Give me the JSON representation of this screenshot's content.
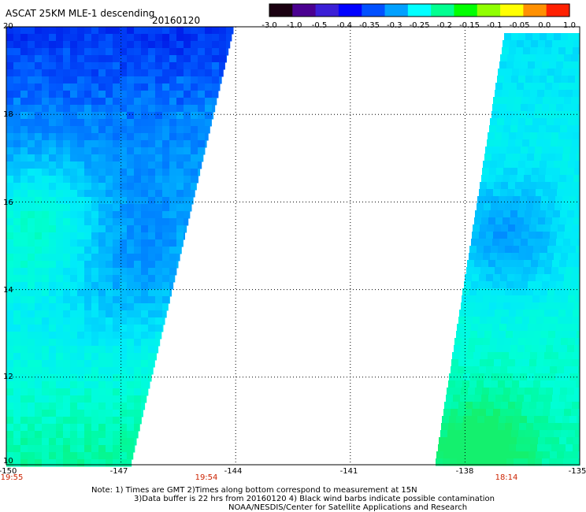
{
  "header": {
    "title": "ASCAT 25KM MLE-1 descending",
    "date": "20160120"
  },
  "colorbar": {
    "labels": [
      "-3.0",
      "-1.0",
      "-0.5",
      "-0.4",
      "-0.35",
      "-0.3",
      "-0.25",
      "-0.2",
      "-0.15",
      "-0.1",
      "-0.05",
      "0.0",
      "1.0"
    ],
    "colors": [
      "#1a0010",
      "#4a0090",
      "#3b1fd6",
      "#0000ff",
      "#0050ff",
      "#00a0ff",
      "#00ffff",
      "#00ff90",
      "#00ff00",
      "#90ff00",
      "#ffff00",
      "#ff9000",
      "#ff2000"
    ]
  },
  "map": {
    "lon_range": [
      -150,
      -135
    ],
    "lat_range": [
      10,
      20
    ],
    "y_ticks": [
      "20",
      "18",
      "16",
      "14",
      "12",
      "10"
    ],
    "x_ticks": [
      "-150",
      "-147",
      "-144",
      "-141",
      "-138",
      "-135"
    ],
    "time_labels": [
      {
        "text": "19:55",
        "lon": -150
      },
      {
        "text": "19:54",
        "lon": -144.5
      },
      {
        "text": "18:14",
        "lon": -136.5
      }
    ],
    "swaths": [
      "west-swath",
      "east-swath"
    ]
  },
  "notes": [
    "Note: 1) Times are GMT 2)Times along bottom correspond to measurement at 15N",
    "3)Data buffer is 22 hrs from 20160120 4) Black wind barbs indicate possible contamination",
    "NOAA/NESDIS/Center for Satellite Applications and Research"
  ]
}
